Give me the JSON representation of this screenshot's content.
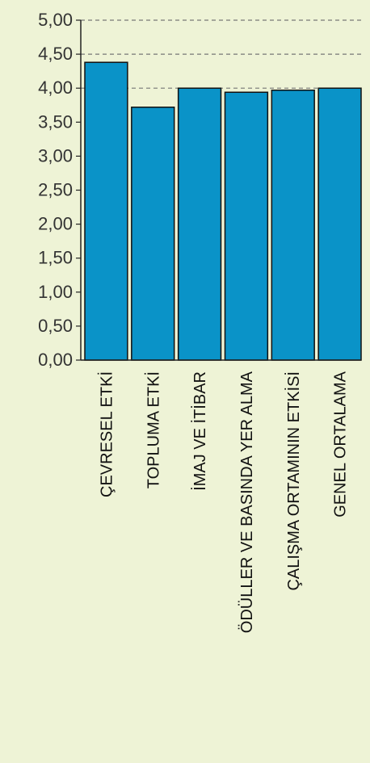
{
  "chart_data": {
    "type": "bar",
    "categories": [
      "ÇEVRESEL ETKİ",
      "TOPLUMA ETKİ",
      "İMAJ VE İTİBAR",
      "ÖDÜLLER VE BASINDA YER ALMA",
      "ÇALIŞMA ORTAMININ ETKİSİ",
      "GENEL ORTALAMA"
    ],
    "values": [
      4.38,
      3.72,
      4.0,
      3.94,
      3.97,
      4.0
    ],
    "y_tick_labels": [
      "0,00",
      "0,50",
      "1,00",
      "1,50",
      "2,00",
      "2,50",
      "3,00",
      "3,50",
      "4,00",
      "4,50",
      "5,00"
    ],
    "ylim": [
      0,
      5
    ],
    "grid": "dashed horizontal at 4,00, 4,50, 5,00",
    "title": "",
    "xlabel": "",
    "ylabel": "",
    "colors": {
      "bar": "#0a93c8",
      "bar_edge": "#111111",
      "background": "#eef3d6",
      "grid": "#777777"
    }
  }
}
